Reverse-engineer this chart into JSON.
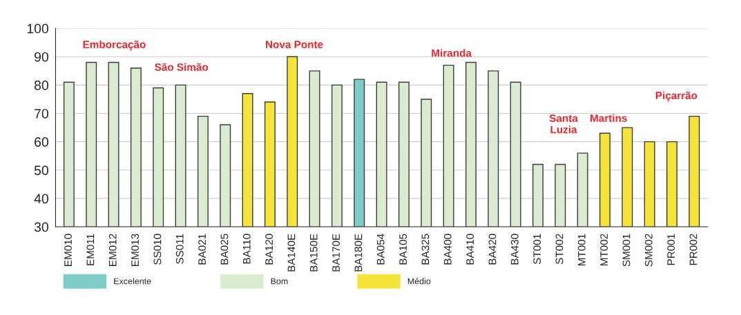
{
  "chart_data": {
    "type": "bar",
    "categories": [
      "EM010",
      "EM011",
      "EM012",
      "EM013",
      "SS010",
      "SS011",
      "BA021",
      "BA025",
      "BA110",
      "BA120",
      "BA140E",
      "BA150E",
      "BA170E",
      "BA180E",
      "BA054",
      "BA105",
      "BA325",
      "BA400",
      "BA410",
      "BA420",
      "BA430",
      "ST001",
      "ST002",
      "MT001",
      "MT002",
      "SM001",
      "SM002",
      "PR001",
      "PR002"
    ],
    "series": [
      {
        "name": "Excelente",
        "color": "#7ecdc8",
        "values": [
          null,
          null,
          null,
          null,
          null,
          null,
          null,
          null,
          null,
          null,
          null,
          null,
          null,
          82,
          null,
          null,
          null,
          null,
          null,
          null,
          null,
          null,
          null,
          null,
          null,
          null,
          null,
          null,
          null
        ]
      },
      {
        "name": "Bom",
        "color": "#d9ecd0",
        "values": [
          81,
          88,
          88,
          86,
          79,
          80,
          69,
          66,
          null,
          null,
          null,
          85,
          80,
          null,
          81,
          81,
          75,
          87,
          88,
          85,
          81,
          52,
          52,
          56,
          null,
          null,
          null,
          null,
          null
        ]
      },
      {
        "name": "Médio",
        "color": "#f7e43a",
        "values": [
          null,
          null,
          null,
          null,
          null,
          null,
          null,
          null,
          77,
          74,
          90,
          null,
          null,
          null,
          null,
          null,
          null,
          null,
          null,
          null,
          null,
          null,
          null,
          null,
          63,
          65,
          60,
          60,
          69
        ]
      }
    ],
    "ylim": [
      30,
      100
    ],
    "yticks": [
      30,
      40,
      50,
      60,
      70,
      80,
      90,
      100
    ],
    "grid": "y",
    "legend": "bottom",
    "annotations": [
      "Emborcação",
      "São Simão",
      "Nova Ponte",
      "Miranda",
      "Santa\nLuzia",
      "Martins",
      "Piçarrão"
    ]
  }
}
